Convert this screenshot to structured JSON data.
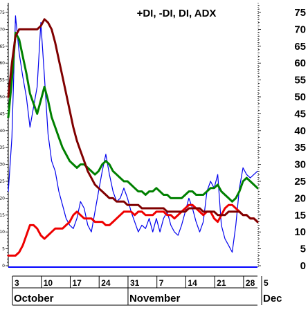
{
  "chart_data": {
    "type": "line",
    "title": "+DI, -DI, DI, ADX",
    "xlabel": "",
    "ylabel": "",
    "ylim": [
      0,
      76
    ],
    "grid": false,
    "y_ticks_left": [
      0,
      5,
      10,
      15,
      20,
      25,
      30,
      35,
      40,
      45,
      50,
      55,
      60,
      65,
      70,
      75
    ],
    "y_ticks_right": [
      0,
      5,
      10,
      15,
      20,
      25,
      30,
      35,
      40,
      45,
      50,
      55,
      60,
      65,
      70,
      75
    ],
    "x_ticks": [
      "3",
      "10",
      "17",
      "24",
      "31",
      "7",
      "14",
      "21",
      "28",
      "5"
    ],
    "months": [
      "October",
      "November",
      "Dec"
    ],
    "x_count": 70,
    "x_tick_positions": [
      0,
      8,
      16,
      24,
      32,
      40,
      48,
      56,
      64,
      69
    ],
    "month_positions": [
      0,
      32,
      69
    ],
    "colors": {
      "blue": "#0000ee",
      "green": "#008000",
      "red": "#ee0000",
      "maroon": "#800000",
      "axis": "#0000ff"
    },
    "series": [
      {
        "color": "#0000ee",
        "values": [
          22,
          38,
          74,
          63,
          56,
          50,
          41,
          47,
          53,
          72,
          56,
          39,
          31,
          28,
          22,
          18,
          14,
          12,
          11,
          14,
          19,
          17,
          12,
          10,
          16,
          22,
          28,
          33,
          27,
          22,
          19,
          20,
          23,
          20,
          16,
          13,
          10,
          12,
          11,
          14,
          10,
          14,
          10,
          14,
          16,
          12,
          10,
          9,
          12,
          16,
          20,
          17,
          13,
          10,
          13,
          22,
          25,
          23,
          27,
          12,
          8,
          6,
          4,
          12,
          23,
          29,
          27,
          26,
          27,
          28
        ]
      },
      {
        "color": "#008000",
        "values": [
          44,
          55,
          69,
          67,
          62,
          57,
          51,
          48,
          45,
          49,
          53,
          49,
          44,
          41,
          38,
          35,
          33,
          31,
          30,
          29,
          30,
          30,
          29,
          28,
          27,
          28,
          30,
          31,
          30,
          28,
          27,
          26,
          25,
          25,
          24,
          23,
          22,
          22,
          21,
          22,
          22,
          23,
          22,
          21,
          21,
          20,
          20,
          20,
          20,
          21,
          22,
          22,
          21,
          21,
          21,
          22,
          23,
          23,
          24,
          22,
          21,
          20,
          19,
          20,
          22,
          25,
          26,
          25,
          24,
          23
        ]
      },
      {
        "color": "#ee0000",
        "values": [
          3,
          3,
          3,
          4,
          6,
          9,
          12,
          12,
          11,
          9,
          8,
          9,
          10,
          11,
          11,
          11,
          12,
          13,
          15,
          16,
          15,
          14,
          14,
          14,
          13,
          13,
          13,
          12,
          12,
          13,
          14,
          15,
          16,
          16,
          16,
          15,
          16,
          16,
          15,
          15,
          15,
          16,
          16,
          16,
          15,
          15,
          14,
          15,
          16,
          17,
          18,
          18,
          17,
          16,
          15,
          16,
          16,
          14,
          13,
          15,
          17,
          18,
          18,
          17,
          16,
          15,
          15,
          14,
          14,
          13
        ]
      },
      {
        "color": "#800000",
        "values": [
          50,
          60,
          68,
          70,
          70,
          70,
          70,
          70,
          70,
          71,
          73,
          72,
          70,
          66,
          61,
          56,
          51,
          46,
          41,
          37,
          34,
          31,
          28,
          26,
          24,
          23,
          22,
          21,
          20,
          20,
          19,
          19,
          19,
          18,
          18,
          18,
          18,
          17,
          17,
          17,
          17,
          17,
          17,
          17,
          16,
          16,
          16,
          16,
          16,
          16,
          17,
          17,
          17,
          17,
          16,
          16,
          16,
          16,
          15,
          15,
          15,
          16,
          16,
          16,
          16,
          15,
          15,
          14,
          14,
          13
        ]
      }
    ]
  }
}
